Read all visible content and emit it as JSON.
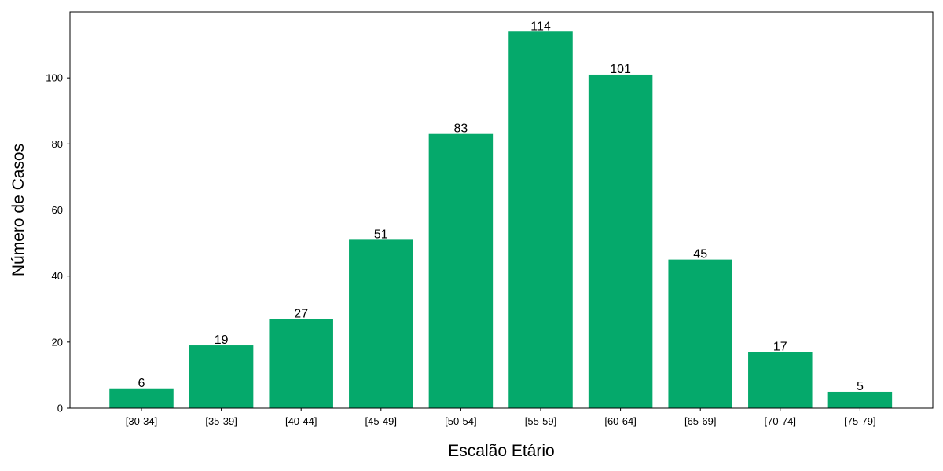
{
  "chart_data": {
    "type": "bar",
    "title": "",
    "xlabel": "Escalão Etário",
    "ylabel": "Número de Casos",
    "categories": [
      "[30-34]",
      "[35-39]",
      "[40-44]",
      "[45-49]",
      "[50-54]",
      "[55-59]",
      "[60-64]",
      "[65-69]",
      "[70-74]",
      "[75-79]"
    ],
    "values": [
      6,
      19,
      27,
      51,
      83,
      114,
      101,
      45,
      17,
      5
    ],
    "data_labels": [
      "6",
      "19",
      "27",
      "51",
      "83",
      "114",
      "101",
      "45",
      "17",
      "5"
    ],
    "ylim": [
      0,
      120
    ],
    "yticks": [
      0,
      20,
      40,
      60,
      80,
      100
    ],
    "ytick_labels": [
      "0",
      "20",
      "40",
      "60",
      "80",
      "100"
    ],
    "grid": false,
    "legend": "none",
    "bar_color": "#05a96b"
  }
}
